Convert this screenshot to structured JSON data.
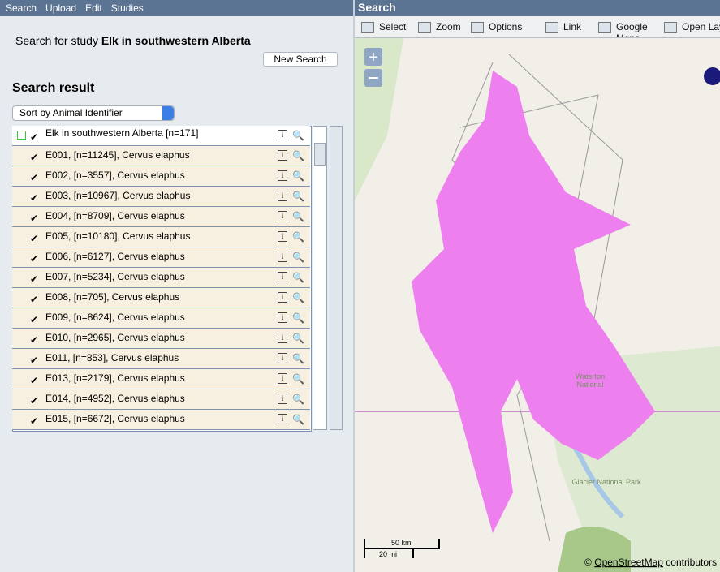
{
  "menu": [
    "Search",
    "Upload",
    "Edit",
    "Studies"
  ],
  "left": {
    "search_label": "Search for study",
    "study": "Elk in southwestern Alberta",
    "new_search": "New Search",
    "result_title": "Search result",
    "sort": "Sort by Animal Identifier",
    "root": "Elk in southwestern Alberta [n=171]",
    "items": [
      "E001, [n=11245], Cervus elaphus",
      "E002, [n=3557], Cervus elaphus",
      "E003, [n=10967], Cervus elaphus",
      "E004, [n=8709], Cervus elaphus",
      "E005, [n=10180], Cervus elaphus",
      "E006, [n=6127], Cervus elaphus",
      "E007, [n=5234], Cervus elaphus",
      "E008, [n=705], Cervus elaphus",
      "E009, [n=8624], Cervus elaphus",
      "E010, [n=2965], Cervus elaphus",
      "E011, [n=853], Cervus elaphus",
      "E013, [n=2179], Cervus elaphus",
      "E014, [n=4952], Cervus elaphus",
      "E015, [n=6672], Cervus elaphus"
    ]
  },
  "map": {
    "title": "Search",
    "toolbar": [
      "Select",
      "Zoom",
      "Options",
      "Link",
      "Google Maps",
      "Open Layers"
    ],
    "scale_km": "50 km",
    "scale_mi": "20 mi",
    "attribution_symbol": "©",
    "attribution_link": "OpenStreetMap",
    "attribution_suffix": "contributors",
    "labels": [
      "Waterton",
      "National",
      "Glacier National Park"
    ]
  }
}
